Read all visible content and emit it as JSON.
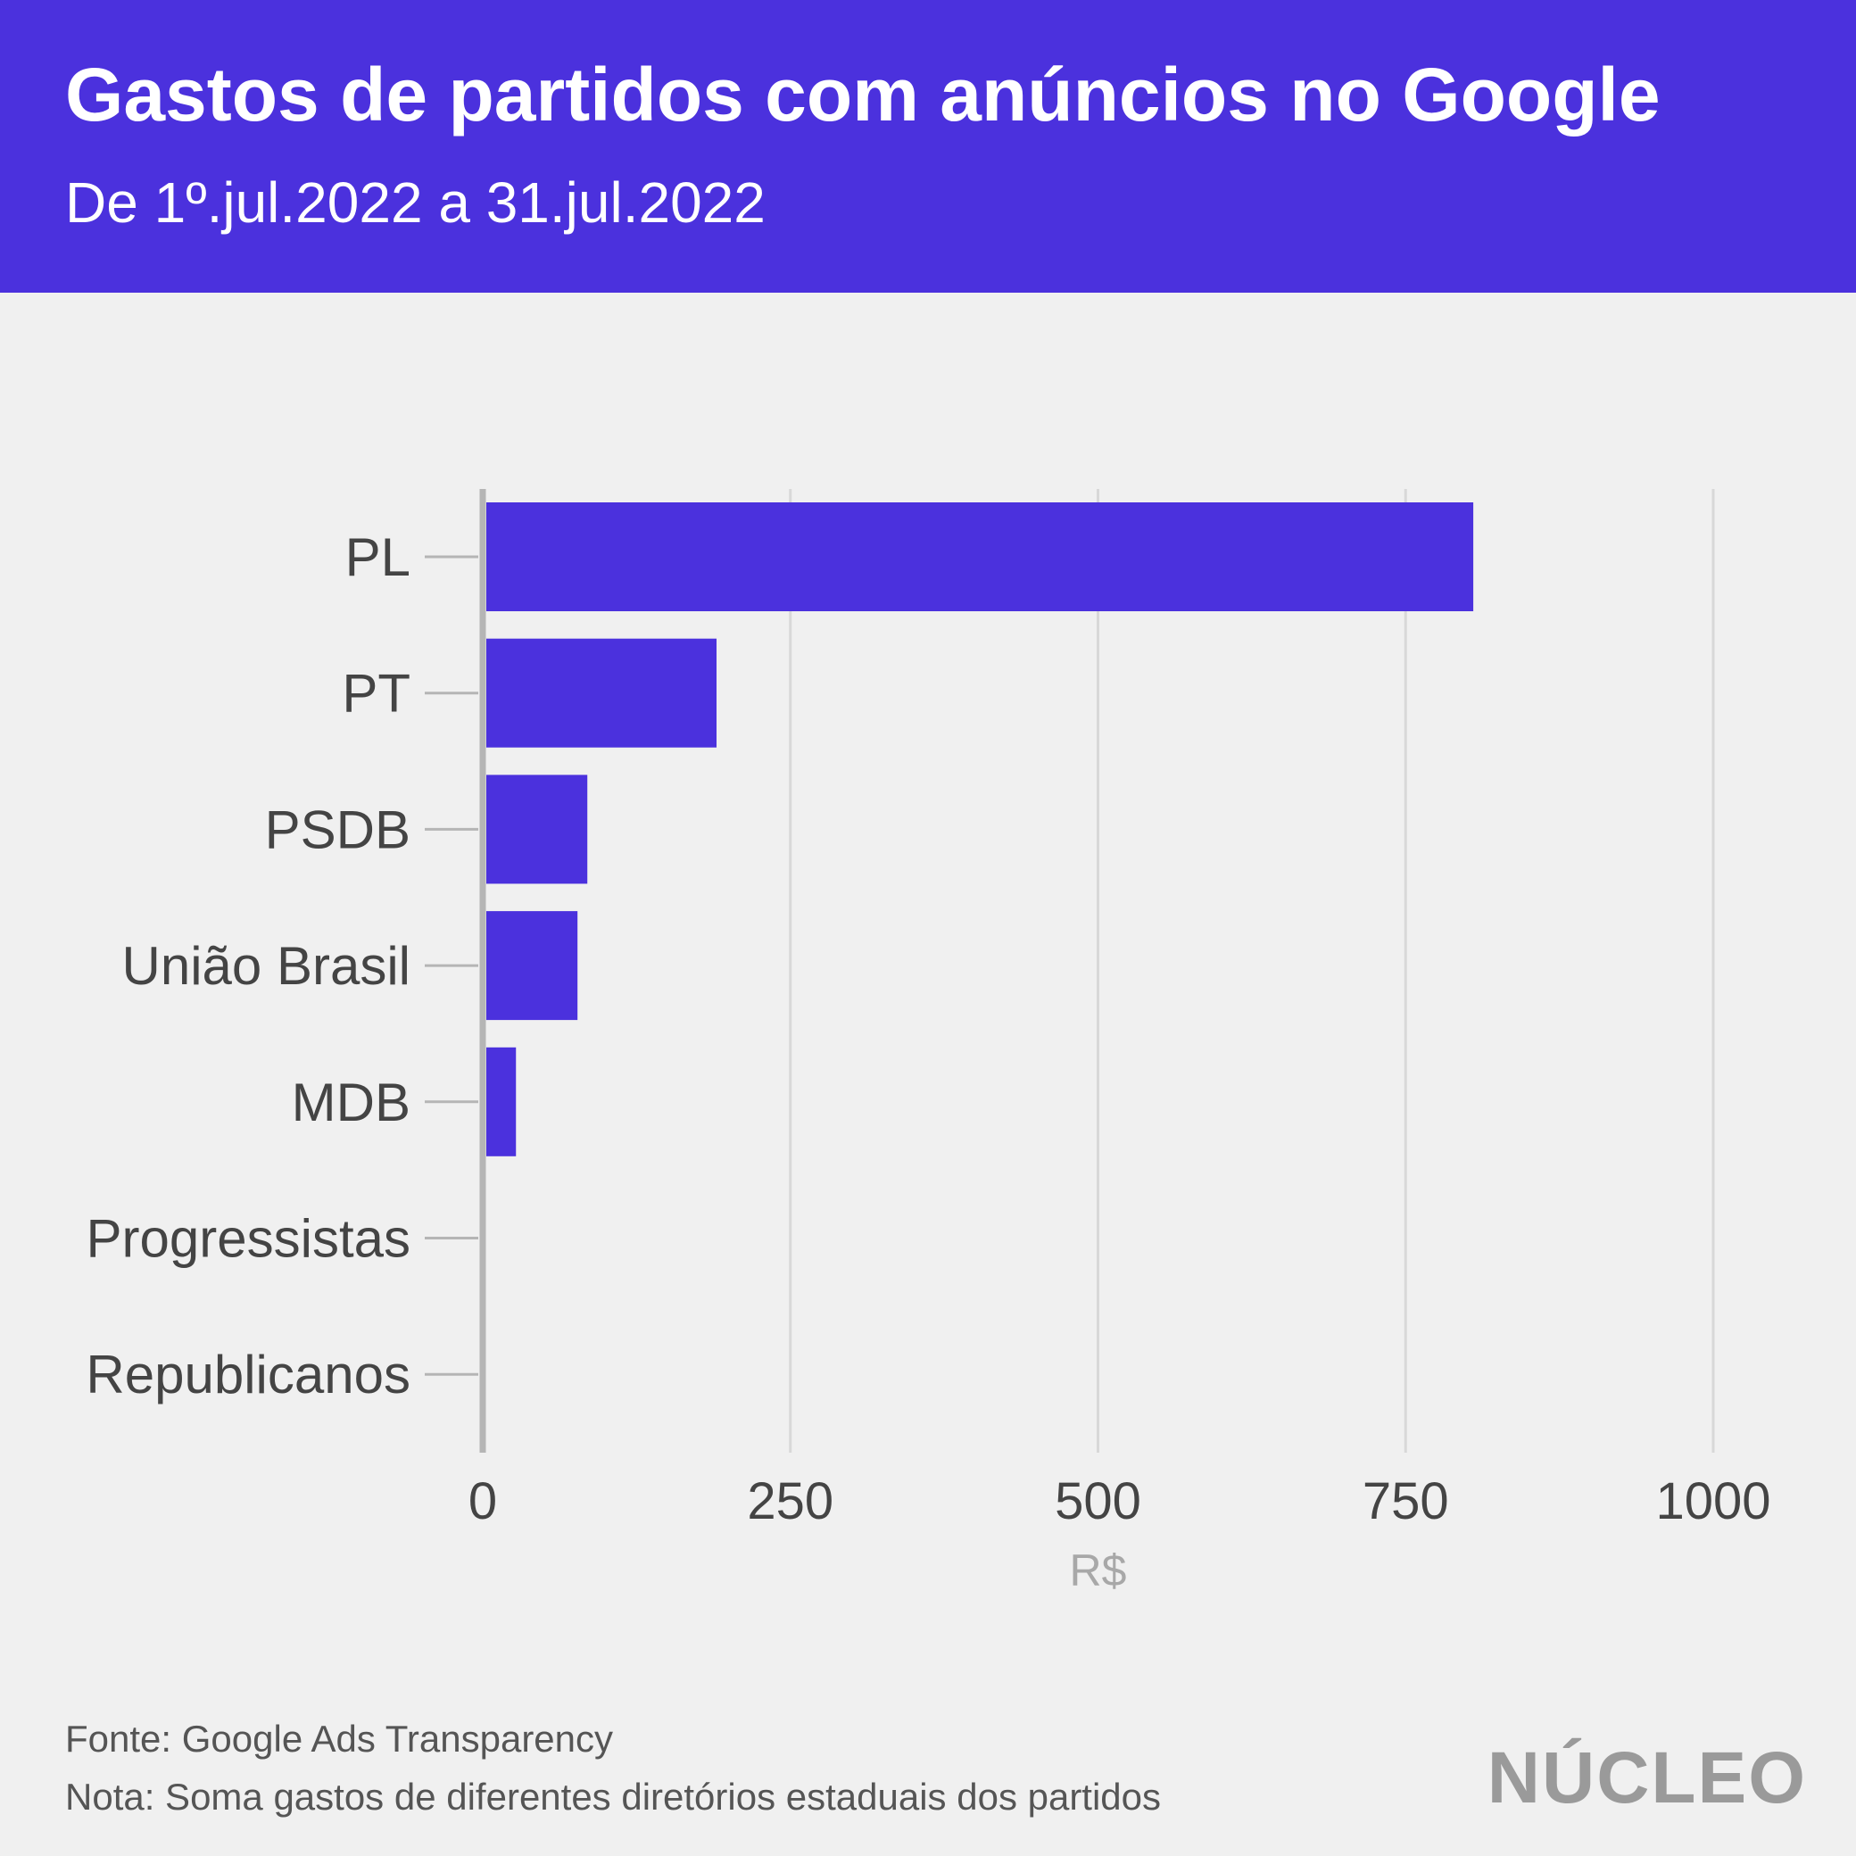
{
  "header": {
    "title": "Gastos de partidos com anúncios no Google",
    "subtitle": "De 1º.jul.2022 a 31.jul.2022"
  },
  "footer": {
    "source": "Fonte: Google Ads Transparency",
    "note": "Nota: Soma gastos de diferentes diretórios estaduais dos partidos"
  },
  "logo": {
    "text": "NÚCLEO"
  },
  "colors": {
    "bar": "#4b31dd",
    "header": "#4b31dd",
    "background": "#f0f0f0",
    "grid": "#d8d8d8"
  },
  "chart_data": {
    "type": "bar",
    "orientation": "horizontal",
    "title": "Gastos de partidos com anúncios no Google",
    "subtitle": "De 1º.jul.2022 a 31.jul.2022",
    "xlabel": "R$",
    "ylabel": "",
    "categories": [
      "PL",
      "PT",
      "PSDB",
      "União Brasil",
      "MDB",
      "Progressistas",
      "Republicanos"
    ],
    "values": [
      805,
      190,
      85,
      77,
      27,
      1,
      0
    ],
    "xlim": [
      0,
      1000
    ],
    "xticks": [
      "0",
      "250",
      "500",
      "750",
      "1000"
    ],
    "grid": true,
    "legend": "none"
  }
}
